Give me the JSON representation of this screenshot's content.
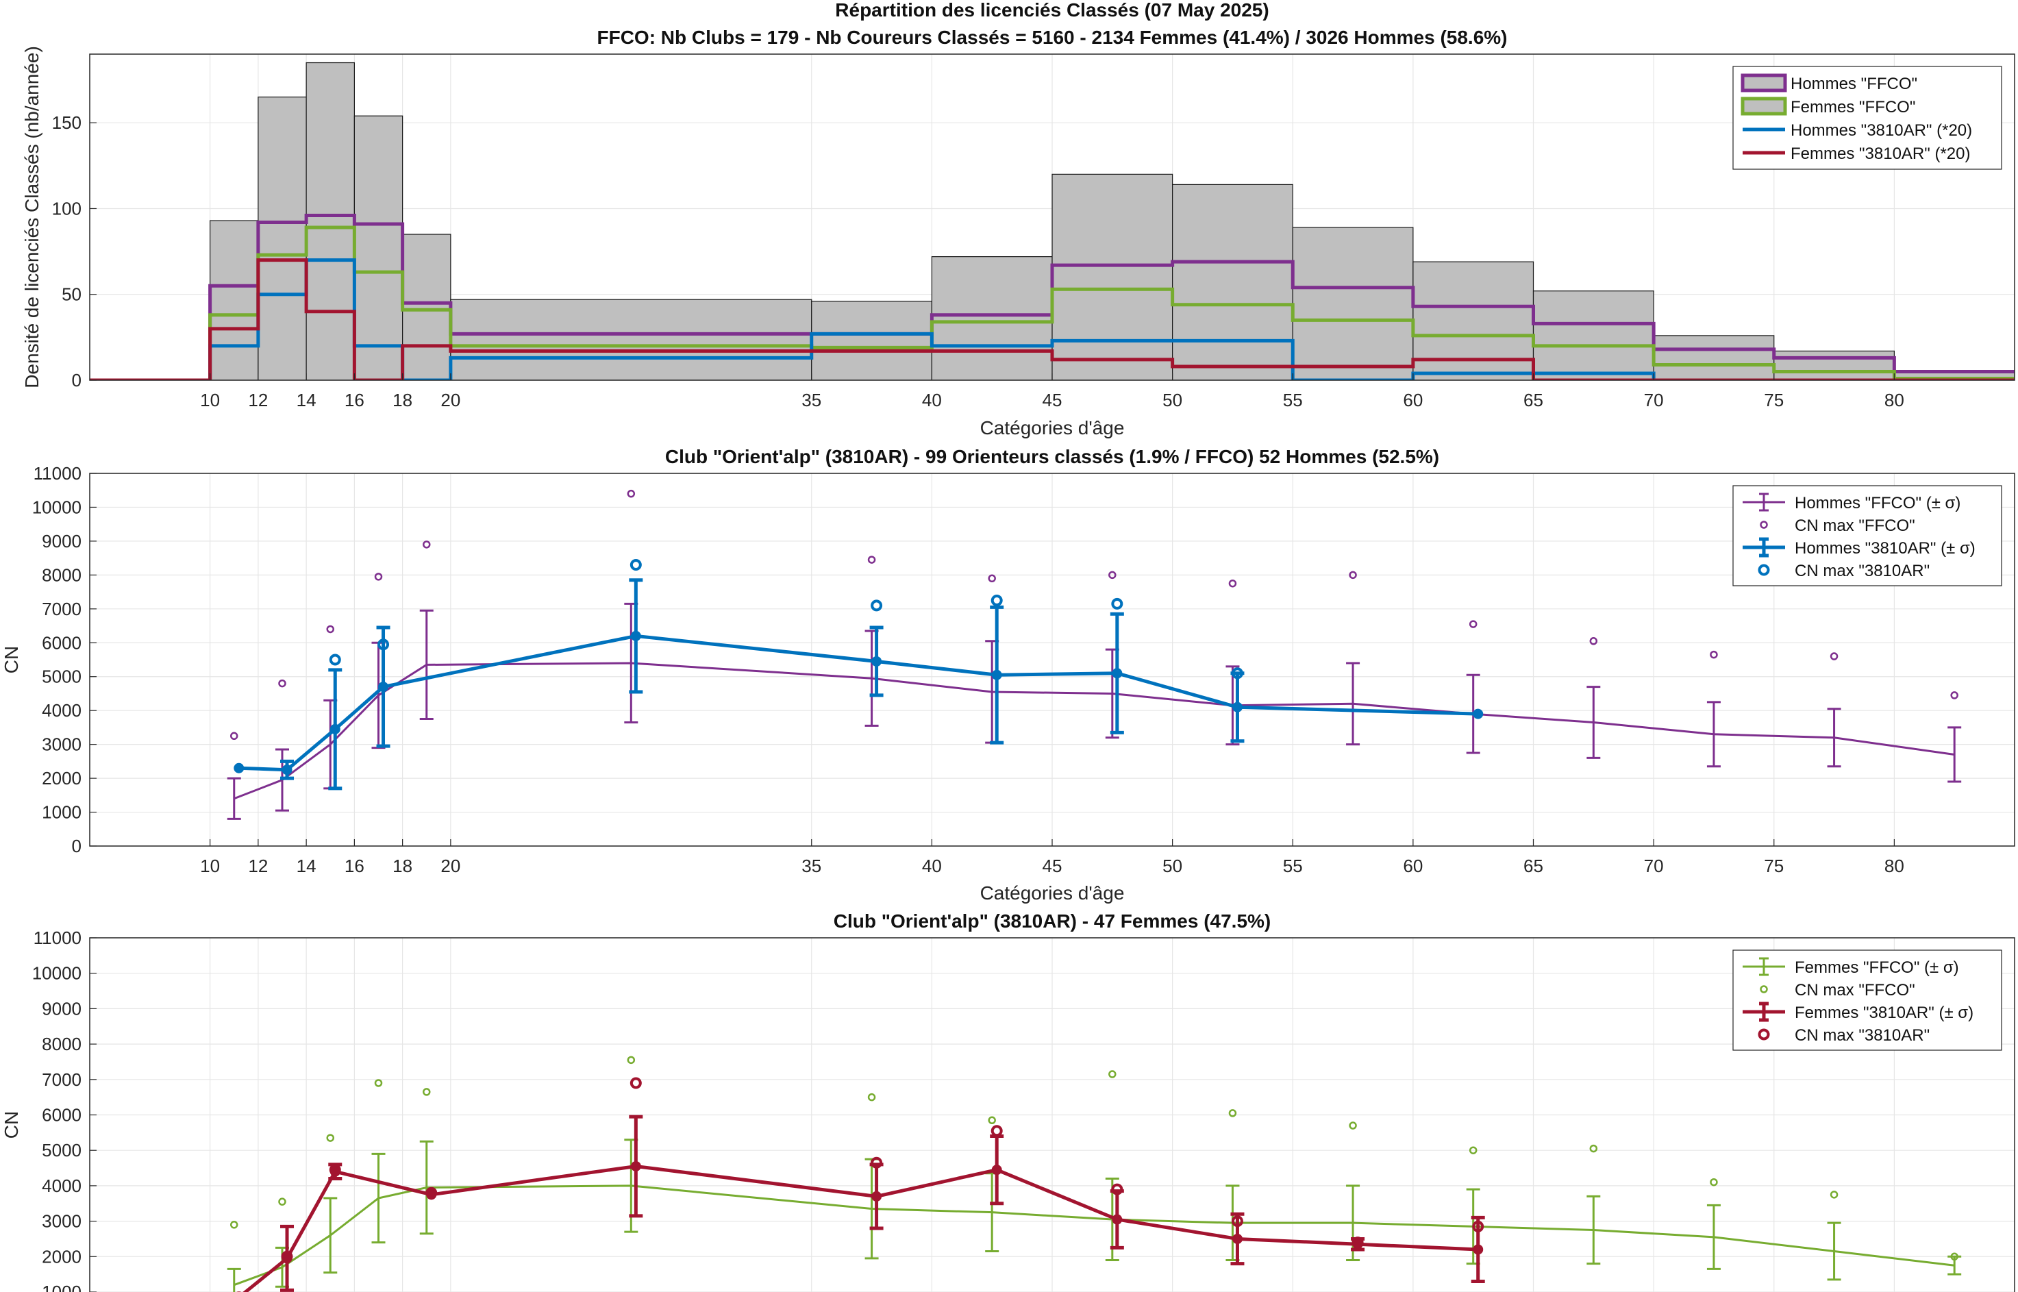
{
  "colors": {
    "hommes_ffco": "#7E2F8E",
    "femmes_ffco": "#77AC30",
    "hommes_club": "#0072BD",
    "femmes_club": "#A2142F",
    "bars": "#BFBFBF",
    "grid": "#E6E6E6"
  },
  "chart_data": [
    {
      "type": "bar",
      "title": "Répartition des licenciés Classés (07 May 2025)",
      "subtitle": "FFCO: Nb Clubs = 179   -   Nb Coureurs Classés = 5160   -   2134 Femmes (41.4%) / 3026 Hommes (58.6%)",
      "xlabel": "Catégories d'âge",
      "ylabel": "Densité de licenciés Classés (nb/année)",
      "xlim": [
        5,
        85
      ],
      "ylim": [
        0,
        190
      ],
      "xticks": [
        10,
        12,
        14,
        16,
        18,
        20,
        35,
        40,
        45,
        50,
        55,
        60,
        65,
        70,
        75,
        80
      ],
      "yticks": [
        0,
        50,
        100,
        150
      ],
      "bin_edges": [
        5,
        10,
        12,
        14,
        16,
        18,
        20,
        35,
        40,
        45,
        50,
        55,
        60,
        65,
        70,
        75,
        80,
        85
      ],
      "total": [
        0,
        93,
        165,
        185,
        154,
        85,
        47,
        46,
        72,
        120,
        114,
        89,
        69,
        52,
        26,
        17,
        5
      ],
      "series": [
        {
          "name": "Hommes \"FFCO\"",
          "values": [
            0,
            55,
            92,
            96,
            91,
            45,
            27,
            27,
            38,
            67,
            69,
            54,
            43,
            33,
            18,
            13,
            5
          ]
        },
        {
          "name": "Femmes \"FFCO\"",
          "values": [
            0,
            38,
            73,
            89,
            63,
            41,
            20,
            19,
            34,
            53,
            44,
            35,
            26,
            20,
            9,
            5,
            1
          ]
        },
        {
          "name": "Hommes \"3810AR\" (*20)",
          "values": [
            0,
            20,
            50,
            70,
            20,
            0,
            13,
            27,
            20,
            23,
            23,
            0,
            4,
            4,
            0,
            0,
            0
          ]
        },
        {
          "name": "Femmes \"3810AR\" (*20)",
          "values": [
            0,
            30,
            70,
            40,
            0,
            20,
            17,
            17,
            17,
            12,
            8,
            8,
            12,
            0,
            0,
            0,
            0
          ]
        }
      ],
      "legend": "top-right"
    },
    {
      "type": "line",
      "title": "Club \"Orient'alp\" (3810AR)  -  99 Orienteurs classés (1.9% / FFCO)  52 Hommes (52.5%)",
      "xlabel": "Catégories d'âge",
      "ylabel": "CN",
      "xlim": [
        5,
        85
      ],
      "ylim": [
        0,
        11000
      ],
      "xticks": [
        10,
        12,
        14,
        16,
        18,
        20,
        35,
        40,
        45,
        50,
        55,
        60,
        65,
        70,
        75,
        80
      ],
      "yticks": [
        0,
        1000,
        2000,
        3000,
        4000,
        5000,
        6000,
        7000,
        8000,
        9000,
        10000,
        11000
      ],
      "series": [
        {
          "name": "Hommes \"FFCO\" (± σ)",
          "x": [
            11,
            13,
            15,
            17,
            19,
            27.5,
            37.5,
            42.5,
            47.5,
            52.5,
            57.5,
            62.5,
            67.5,
            72.5,
            77.5,
            82.5
          ],
          "y": [
            1400,
            1950,
            3000,
            4450,
            5350,
            5400,
            4950,
            4550,
            4500,
            4150,
            4200,
            3900,
            3650,
            3300,
            3200,
            2700
          ],
          "err": [
            600,
            900,
            1300,
            1550,
            1600,
            1750,
            1400,
            1500,
            1300,
            1150,
            1200,
            1150,
            1050,
            950,
            850,
            800
          ]
        },
        {
          "name": "CN max \"FFCO\"",
          "x": [
            11,
            13,
            15,
            17,
            19,
            27.5,
            37.5,
            42.5,
            47.5,
            52.5,
            57.5,
            62.5,
            67.5,
            72.5,
            77.5,
            82.5
          ],
          "y": [
            3250,
            4800,
            6400,
            7950,
            8900,
            10400,
            8450,
            7900,
            8000,
            7750,
            8000,
            6550,
            6050,
            5650,
            5600,
            4450
          ]
        },
        {
          "name": "Hommes \"3810AR\" (± σ)",
          "x": [
            11.2,
            13.2,
            15.2,
            17.2,
            27.7,
            37.7,
            42.7,
            47.7,
            52.7,
            62.7
          ],
          "y": [
            2300,
            2250,
            3450,
            4700,
            6200,
            5450,
            5050,
            5100,
            4100,
            3900
          ],
          "err": [
            0,
            250,
            1750,
            1750,
            1650,
            1000,
            2000,
            1750,
            1000,
            0
          ]
        },
        {
          "name": "CN max \"3810AR\"",
          "x": [
            15.2,
            17.2,
            27.7,
            37.7,
            42.7,
            47.7,
            52.7
          ],
          "y": [
            5500,
            5950,
            8300,
            7100,
            7250,
            7150,
            5100
          ]
        }
      ],
      "legend": "top-right"
    },
    {
      "type": "line",
      "title": "Club \"Orient'alp\" (3810AR)  -  47 Femmes (47.5%)",
      "ylabel": "CN",
      "xlim": [
        5,
        85
      ],
      "ylim": [
        1000,
        11000
      ],
      "yticks": [
        1000,
        2000,
        3000,
        4000,
        5000,
        6000,
        7000,
        8000,
        9000,
        10000,
        11000
      ],
      "series": [
        {
          "name": "Femmes \"FFCO\" (± σ)",
          "x": [
            11,
            13,
            15,
            17,
            19,
            27.5,
            37.5,
            42.5,
            47.5,
            52.5,
            57.5,
            62.5,
            67.5,
            72.5,
            77.5,
            82.5
          ],
          "y": [
            1200,
            1700,
            2600,
            3650,
            3950,
            4000,
            3350,
            3250,
            3050,
            2950,
            2950,
            2850,
            2750,
            2550,
            2150,
            1750
          ],
          "err": [
            450,
            550,
            1050,
            1250,
            1300,
            1300,
            1400,
            1100,
            1150,
            1050,
            1050,
            1050,
            950,
            900,
            800,
            250
          ]
        },
        {
          "name": "CN max \"FFCO\"",
          "x": [
            11,
            13,
            15,
            17,
            19,
            27.5,
            37.5,
            42.5,
            47.5,
            52.5,
            57.5,
            62.5,
            67.5,
            72.5,
            77.5,
            82.5
          ],
          "y": [
            2900,
            3550,
            5350,
            6900,
            6650,
            7550,
            6500,
            5850,
            7150,
            6050,
            5700,
            5000,
            5050,
            4100,
            3750,
            2000
          ]
        },
        {
          "name": "Femmes \"3810AR\" (± σ)",
          "x": [
            11.2,
            13.2,
            15.2,
            19.2,
            27.7,
            37.7,
            42.7,
            47.7,
            52.7,
            57.7,
            62.7
          ],
          "y": [
            850,
            1950,
            4400,
            3750,
            4550,
            3700,
            4450,
            3050,
            2500,
            2350,
            2200
          ],
          "err": [
            0,
            900,
            200,
            0,
            1400,
            900,
            950,
            800,
            700,
            150,
            900
          ]
        },
        {
          "name": "CN max \"3810AR\"",
          "x": [
            11.2,
            13.2,
            15.2,
            19.2,
            27.7,
            37.7,
            42.7,
            47.7,
            52.7,
            57.7,
            62.7
          ],
          "y": [
            850,
            2000,
            4450,
            3800,
            6900,
            4650,
            5550,
            3900,
            3000,
            2400,
            2850
          ]
        }
      ],
      "legend": "top-right"
    }
  ]
}
